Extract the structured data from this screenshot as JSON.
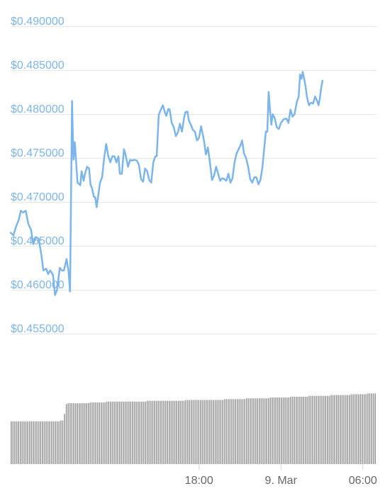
{
  "chart_data": {
    "type": "line",
    "title": "",
    "xlabel": "",
    "ylabel": "",
    "y_ticks": [
      "$0.455000",
      "$0.460000",
      "$0.465000",
      "$0.470000",
      "$0.475000",
      "$0.480000",
      "$0.485000",
      "$0.490000"
    ],
    "y_tick_values": [
      0.455,
      0.46,
      0.465,
      0.47,
      0.475,
      0.48,
      0.485,
      0.49
    ],
    "ylim": [
      0.455,
      0.49
    ],
    "x_ticks": [
      {
        "label": "18:00",
        "hour": 18
      },
      {
        "label": "9. Mar",
        "hour": 24
      },
      {
        "label": "06:00",
        "hour": 30
      }
    ],
    "xlim_hours": [
      4.2,
      31.0
    ],
    "grid": true,
    "line_color": "#7cb5ec",
    "volume_color": "#999999",
    "series": [
      {
        "values": [
          [
            4.2,
            0.4665
          ],
          [
            4.4,
            0.4662
          ],
          [
            4.6,
            0.4672
          ],
          [
            4.8,
            0.468
          ],
          [
            4.95,
            0.469
          ],
          [
            5.1,
            0.4688
          ],
          [
            5.3,
            0.469
          ],
          [
            5.5,
            0.4675
          ],
          [
            5.7,
            0.4668
          ],
          [
            5.85,
            0.4652
          ],
          [
            6.05,
            0.466
          ],
          [
            6.25,
            0.4658
          ],
          [
            6.45,
            0.464
          ],
          [
            6.6,
            0.4622
          ],
          [
            6.8,
            0.4624
          ],
          [
            6.95,
            0.4618
          ],
          [
            7.1,
            0.4622
          ],
          [
            7.3,
            0.4617
          ],
          [
            7.45,
            0.4594
          ],
          [
            7.6,
            0.46
          ],
          [
            7.8,
            0.4625
          ],
          [
            7.95,
            0.4622
          ],
          [
            8.1,
            0.4622
          ],
          [
            8.3,
            0.4635
          ],
          [
            8.45,
            0.462
          ],
          [
            8.55,
            0.4598
          ],
          [
            8.7,
            0.4815
          ],
          [
            8.8,
            0.4748
          ],
          [
            8.9,
            0.4768
          ],
          [
            9.0,
            0.4745
          ],
          [
            9.1,
            0.4722
          ],
          [
            9.3,
            0.4719
          ],
          [
            9.4,
            0.4735
          ],
          [
            9.55,
            0.4724
          ],
          [
            9.65,
            0.4732
          ],
          [
            9.8,
            0.474
          ],
          [
            9.95,
            0.4738
          ],
          [
            10.05,
            0.472
          ],
          [
            10.15,
            0.4716
          ],
          [
            10.3,
            0.4706
          ],
          [
            10.4,
            0.4705
          ],
          [
            10.5,
            0.4694
          ],
          [
            10.6,
            0.4705
          ],
          [
            10.75,
            0.4722
          ],
          [
            10.9,
            0.4728
          ],
          [
            11.05,
            0.475
          ],
          [
            11.2,
            0.4766
          ],
          [
            11.35,
            0.4752
          ],
          [
            11.5,
            0.4745
          ],
          [
            11.65,
            0.4752
          ],
          [
            11.8,
            0.4752
          ],
          [
            11.95,
            0.4745
          ],
          [
            12.1,
            0.4752
          ],
          [
            12.2,
            0.4732
          ],
          [
            12.35,
            0.4732
          ],
          [
            12.5,
            0.476
          ],
          [
            12.6,
            0.4755
          ],
          [
            12.8,
            0.474
          ],
          [
            12.95,
            0.4748
          ],
          [
            13.1,
            0.4747
          ],
          [
            13.25,
            0.4748
          ],
          [
            13.45,
            0.4747
          ],
          [
            13.6,
            0.4742
          ],
          [
            13.75,
            0.4726
          ],
          [
            13.9,
            0.4723
          ],
          [
            14.05,
            0.4738
          ],
          [
            14.2,
            0.4735
          ],
          [
            14.35,
            0.4725
          ],
          [
            14.5,
            0.4722
          ],
          [
            14.65,
            0.4745
          ],
          [
            14.8,
            0.4752
          ],
          [
            14.9,
            0.4752
          ],
          [
            15.05,
            0.4799
          ],
          [
            15.2,
            0.4805
          ],
          [
            15.35,
            0.481
          ],
          [
            15.5,
            0.4802
          ],
          [
            15.6,
            0.4798
          ],
          [
            15.75,
            0.4806
          ],
          [
            15.85,
            0.4805
          ],
          [
            16.0,
            0.479
          ],
          [
            16.15,
            0.4785
          ],
          [
            16.3,
            0.4775
          ],
          [
            16.45,
            0.4779
          ],
          [
            16.6,
            0.4789
          ],
          [
            16.75,
            0.478
          ],
          [
            16.9,
            0.4795
          ],
          [
            17.0,
            0.4802
          ],
          [
            17.15,
            0.4803
          ],
          [
            17.25,
            0.4793
          ],
          [
            17.4,
            0.4788
          ],
          [
            17.55,
            0.4782
          ],
          [
            17.7,
            0.478
          ],
          [
            17.85,
            0.477
          ],
          [
            18.0,
            0.4773
          ],
          [
            18.15,
            0.4786
          ],
          [
            18.3,
            0.4775
          ],
          [
            18.4,
            0.4766
          ],
          [
            18.5,
            0.4754
          ],
          [
            18.65,
            0.4762
          ],
          [
            18.8,
            0.4745
          ],
          [
            18.95,
            0.4725
          ],
          [
            19.1,
            0.473
          ],
          [
            19.25,
            0.474
          ],
          [
            19.4,
            0.4732
          ],
          [
            19.55,
            0.4724
          ],
          [
            19.7,
            0.4727
          ],
          [
            19.85,
            0.4726
          ],
          [
            20.0,
            0.4724
          ],
          [
            20.15,
            0.4732
          ],
          [
            20.3,
            0.4722
          ],
          [
            20.45,
            0.4727
          ],
          [
            20.6,
            0.4745
          ],
          [
            20.75,
            0.4755
          ],
          [
            20.9,
            0.476
          ],
          [
            21.05,
            0.4765
          ],
          [
            21.15,
            0.477
          ],
          [
            21.3,
            0.4755
          ],
          [
            21.45,
            0.475
          ],
          [
            21.6,
            0.474
          ],
          [
            21.75,
            0.4726
          ],
          [
            21.9,
            0.4722
          ],
          [
            22.05,
            0.4728
          ],
          [
            22.2,
            0.4728
          ],
          [
            22.35,
            0.472
          ],
          [
            22.5,
            0.4725
          ],
          [
            22.65,
            0.474
          ],
          [
            22.8,
            0.4765
          ],
          [
            22.9,
            0.478
          ],
          [
            23.0,
            0.478
          ],
          [
            23.1,
            0.4825
          ],
          [
            23.2,
            0.4805
          ],
          [
            23.3,
            0.4788
          ],
          [
            23.4,
            0.48
          ],
          [
            23.55,
            0.4795
          ],
          [
            23.7,
            0.4785
          ],
          [
            23.85,
            0.4783
          ],
          [
            24.0,
            0.479
          ],
          [
            24.2,
            0.4794
          ],
          [
            24.4,
            0.4795
          ],
          [
            24.55,
            0.479
          ],
          [
            24.7,
            0.4805
          ],
          [
            24.85,
            0.4797
          ],
          [
            25.0,
            0.48
          ],
          [
            25.15,
            0.4813
          ],
          [
            25.3,
            0.482
          ],
          [
            25.4,
            0.4845
          ],
          [
            25.5,
            0.484
          ],
          [
            25.6,
            0.4848
          ],
          [
            25.7,
            0.484
          ],
          [
            25.8,
            0.4832
          ],
          [
            25.9,
            0.482
          ],
          [
            26.05,
            0.481
          ],
          [
            26.2,
            0.4813
          ],
          [
            26.35,
            0.4812
          ],
          [
            26.5,
            0.482
          ],
          [
            26.65,
            0.4815
          ],
          [
            26.75,
            0.481
          ],
          [
            26.85,
            0.4818
          ],
          [
            26.95,
            0.483
          ],
          [
            27.05,
            0.4838
          ]
        ],
        "volume": [
          0.52,
          0.52,
          0.52,
          0.52,
          0.52,
          0.52,
          0.52,
          0.52,
          0.52,
          0.52,
          0.52,
          0.52,
          0.52,
          0.52,
          0.52,
          0.52,
          0.52,
          0.52,
          0.52,
          0.52,
          0.52,
          0.52,
          0.52,
          0.52,
          0.52,
          0.52,
          0.52,
          0.53,
          0.53,
          0.61,
          0.73,
          0.74,
          0.74,
          0.74,
          0.74,
          0.74,
          0.74,
          0.74,
          0.74,
          0.74,
          0.74,
          0.74,
          0.74,
          0.75,
          0.75,
          0.75,
          0.75,
          0.75,
          0.75,
          0.75,
          0.75,
          0.75,
          0.76,
          0.76,
          0.76,
          0.76,
          0.76,
          0.76,
          0.76,
          0.76,
          0.76,
          0.76,
          0.76,
          0.76,
          0.76,
          0.76,
          0.76,
          0.76,
          0.76,
          0.76,
          0.76,
          0.76,
          0.76,
          0.76,
          0.77,
          0.77,
          0.77,
          0.77,
          0.77,
          0.77,
          0.77,
          0.77,
          0.77,
          0.77,
          0.77,
          0.77,
          0.77,
          0.77,
          0.77,
          0.77,
          0.77,
          0.77,
          0.77,
          0.77,
          0.77,
          0.78,
          0.78,
          0.78,
          0.78,
          0.78,
          0.78,
          0.78,
          0.78,
          0.78,
          0.78,
          0.78,
          0.78,
          0.78,
          0.78,
          0.78,
          0.78,
          0.78,
          0.78,
          0.78,
          0.78,
          0.78,
          0.79,
          0.79,
          0.79,
          0.79,
          0.79,
          0.79,
          0.79,
          0.79,
          0.79,
          0.79,
          0.79,
          0.79,
          0.8,
          0.8,
          0.8,
          0.8,
          0.8,
          0.8,
          0.8,
          0.8,
          0.8,
          0.8,
          0.8,
          0.8,
          0.8,
          0.81,
          0.81,
          0.81,
          0.81,
          0.81,
          0.81,
          0.81,
          0.81,
          0.81,
          0.81,
          0.81,
          0.82,
          0.82,
          0.82,
          0.82,
          0.82,
          0.82,
          0.82,
          0.82,
          0.82,
          0.82,
          0.83,
          0.83,
          0.83,
          0.83,
          0.83,
          0.83,
          0.83,
          0.83,
          0.83,
          0.83,
          0.83,
          0.83,
          0.84,
          0.84,
          0.84,
          0.84,
          0.84,
          0.84,
          0.84,
          0.84,
          0.84,
          0.84,
          0.84,
          0.85,
          0.85,
          0.85,
          0.85,
          0.85,
          0.85,
          0.85,
          0.85,
          0.85,
          0.86,
          0.86,
          0.86,
          0.86,
          0.86
        ]
      }
    ]
  }
}
